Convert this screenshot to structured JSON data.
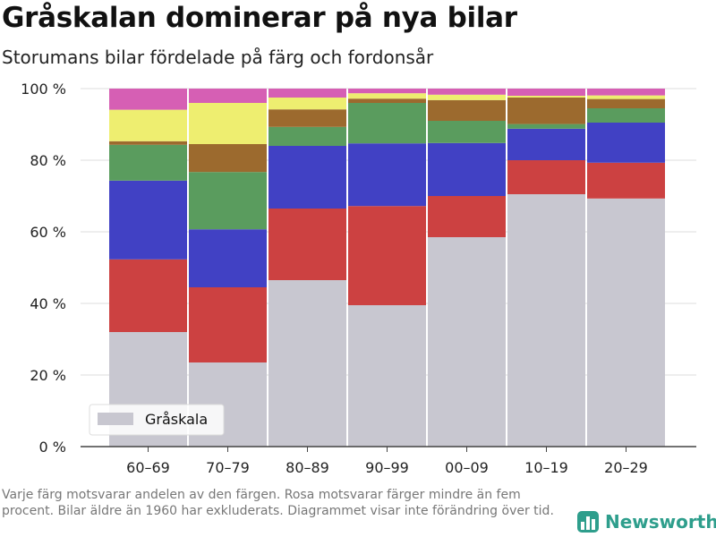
{
  "title": "Gråskalan dominerar på nya bilar",
  "subtitle": "Storumans bilar fördelade på färg och fordonsår",
  "footnote": "Varje färg motsvarar andelen av den färgen. Rosa motsvarar färger mindre än fem procent. Bilar äldre än 1960 har exkluderats. Diagrammet visar inte förändring över tid.",
  "brand": "Newsworthy",
  "colors": {
    "gray": "#c8c7d0",
    "red": "#cc4141",
    "blue": "#4141c4",
    "green": "#5a9c5e",
    "brown": "#9c6a2e",
    "yellow": "#eeee70",
    "pink": "#d65fb4",
    "brand": "#2e9e8c"
  },
  "chart_data": {
    "type": "bar",
    "stacked": true,
    "categories": [
      "60–69",
      "70–79",
      "80–89",
      "90–99",
      "00–09",
      "10–19",
      "20–29"
    ],
    "series": [
      {
        "name": "Gråskala",
        "color": "gray",
        "values": [
          32,
          23.5,
          46.5,
          39.5,
          58.5,
          70.5,
          69.3
        ]
      },
      {
        "color": "red",
        "values": [
          20.3,
          21,
          20,
          27.7,
          11.5,
          9.5,
          10
        ]
      },
      {
        "color": "blue",
        "values": [
          22,
          16.2,
          17.5,
          17.5,
          14.8,
          8.8,
          11.2
        ]
      },
      {
        "color": "green",
        "values": [
          10,
          16,
          5.3,
          11.3,
          6.2,
          1.3,
          4
        ]
      },
      {
        "color": "brown",
        "values": [
          1,
          7.8,
          4.9,
          1.2,
          5.8,
          7.4,
          2.6
        ]
      },
      {
        "color": "yellow",
        "values": [
          8.8,
          11.5,
          3.3,
          1.5,
          1.5,
          0.5,
          1
        ]
      },
      {
        "color": "pink",
        "values": [
          5.9,
          4,
          2.5,
          1.3,
          1.7,
          2,
          1.9
        ]
      }
    ],
    "yticks": [
      0,
      20,
      40,
      60,
      80,
      100
    ],
    "ytick_labels": [
      "0 %",
      "20 %",
      "40 %",
      "60 %",
      "80 %",
      "100 %"
    ],
    "ylim": [
      0,
      100
    ],
    "grid": true,
    "legend_position": "bottom-left"
  }
}
